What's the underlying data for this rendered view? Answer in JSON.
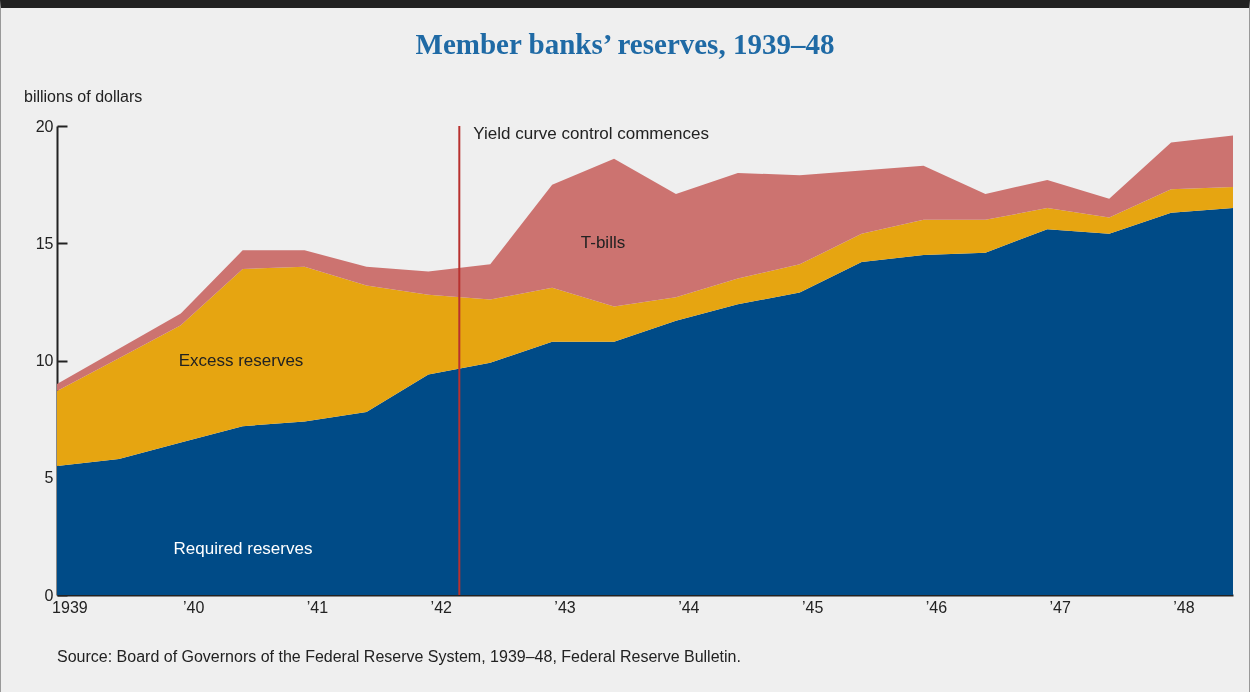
{
  "chart_data": {
    "type": "area",
    "stacked": true,
    "title": "Member banks’ reserves, 1939–48",
    "ylabel": "billions of dollars",
    "annotations": [
      "Source: Board of Governors of the Federal Reserve System, 1939–48, Federal Reserve Bulletin."
    ],
    "x": [
      1938.9,
      1939.4,
      1939.9,
      1940.4,
      1940.9,
      1941.4,
      1941.9,
      1942.4,
      1942.9,
      1943.4,
      1943.9,
      1944.4,
      1944.9,
      1945.4,
      1945.9,
      1946.4,
      1946.9,
      1947.4,
      1947.9,
      1948.4
    ],
    "series": [
      {
        "name": "Required reserves",
        "color": "#004b87",
        "values": [
          5.5,
          5.8,
          6.5,
          7.2,
          7.4,
          7.8,
          9.4,
          9.9,
          10.8,
          10.8,
          11.7,
          12.4,
          12.9,
          14.2,
          14.5,
          14.6,
          15.6,
          15.4,
          16.3,
          16.5
        ]
      },
      {
        "name": "Excess reserves",
        "color": "#e6a511",
        "values": [
          3.2,
          4.3,
          5.0,
          6.7,
          6.6,
          5.4,
          3.4,
          2.7,
          2.3,
          1.5,
          1.0,
          1.1,
          1.2,
          1.2,
          1.5,
          1.4,
          0.9,
          0.7,
          1.0,
          0.9
        ]
      },
      {
        "name": "T-bills",
        "color": "#cc7370",
        "values": [
          0.3,
          0.4,
          0.5,
          0.8,
          0.7,
          0.8,
          1.0,
          1.5,
          4.4,
          6.3,
          4.4,
          4.5,
          3.8,
          2.7,
          2.3,
          1.1,
          1.2,
          0.8,
          2.0,
          2.2
        ]
      }
    ],
    "xlim": [
      1938.9,
      1948.4
    ],
    "xticks": [
      {
        "value": 1939,
        "label": "1939"
      },
      {
        "value": 1940,
        "label": "’40"
      },
      {
        "value": 1941,
        "label": "’41"
      },
      {
        "value": 1942,
        "label": "’42"
      },
      {
        "value": 1943,
        "label": "’43"
      },
      {
        "value": 1944,
        "label": "’44"
      },
      {
        "value": 1945,
        "label": "’45"
      },
      {
        "value": 1946,
        "label": "’46"
      },
      {
        "value": 1947,
        "label": "’47"
      },
      {
        "value": 1948,
        "label": "’48"
      }
    ],
    "ylim": [
      0,
      20
    ],
    "yticks": [
      0,
      5,
      10,
      15,
      20
    ],
    "ref_lines": [
      {
        "axis": "x",
        "value": 1942.15,
        "label": "Yield curve control commences",
        "color": "#b8312f"
      }
    ]
  }
}
